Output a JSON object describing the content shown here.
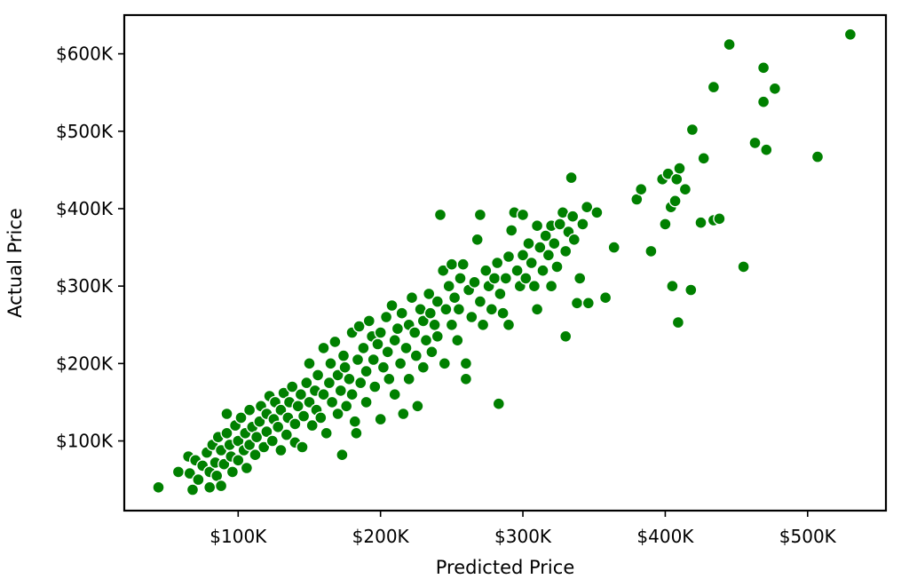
{
  "chart_data": {
    "type": "scatter",
    "title": "",
    "xlabel": "Predicted Price",
    "ylabel": "Actual Price",
    "xlim": [
      20000,
      555000
    ],
    "ylim": [
      10000,
      650000
    ],
    "x_ticks": [
      100000,
      200000,
      300000,
      400000,
      500000
    ],
    "x_tick_labels": [
      "$100K",
      "$200K",
      "$300K",
      "$400K",
      "$500K"
    ],
    "y_ticks": [
      100000,
      200000,
      300000,
      400000,
      500000,
      600000
    ],
    "y_tick_labels": [
      "$100K",
      "$200K",
      "$300K",
      "$400K",
      "$500K",
      "$600K"
    ],
    "grid": false,
    "legend": "none",
    "marker_color": "#008000",
    "marker_edge_color": "#ffffff",
    "series": [
      {
        "points": [
          [
            44000,
            40000
          ],
          [
            58000,
            60000
          ],
          [
            65000,
            80000
          ],
          [
            66000,
            58000
          ],
          [
            68000,
            37000
          ],
          [
            70000,
            75000
          ],
          [
            72000,
            50000
          ],
          [
            75000,
            68000
          ],
          [
            78000,
            85000
          ],
          [
            80000,
            40000
          ],
          [
            80000,
            60000
          ],
          [
            82000,
            95000
          ],
          [
            84000,
            72000
          ],
          [
            85000,
            55000
          ],
          [
            86000,
            105000
          ],
          [
            88000,
            88000
          ],
          [
            88000,
            42000
          ],
          [
            90000,
            70000
          ],
          [
            92000,
            110000
          ],
          [
            92000,
            135000
          ],
          [
            94000,
            95000
          ],
          [
            95000,
            80000
          ],
          [
            96000,
            60000
          ],
          [
            98000,
            120000
          ],
          [
            100000,
            100000
          ],
          [
            100000,
            75000
          ],
          [
            102000,
            130000
          ],
          [
            104000,
            88000
          ],
          [
            105000,
            110000
          ],
          [
            106000,
            65000
          ],
          [
            108000,
            140000
          ],
          [
            108000,
            95000
          ],
          [
            110000,
            118000
          ],
          [
            112000,
            82000
          ],
          [
            113000,
            105000
          ],
          [
            115000,
            125000
          ],
          [
            116000,
            145000
          ],
          [
            118000,
            92000
          ],
          [
            120000,
            112000
          ],
          [
            120000,
            135000
          ],
          [
            122000,
            158000
          ],
          [
            124000,
            100000
          ],
          [
            125000,
            128000
          ],
          [
            126000,
            150000
          ],
          [
            128000,
            118000
          ],
          [
            130000,
            88000
          ],
          [
            130000,
            140000
          ],
          [
            132000,
            162000
          ],
          [
            134000,
            108000
          ],
          [
            135000,
            130000
          ],
          [
            136000,
            150000
          ],
          [
            138000,
            170000
          ],
          [
            140000,
            122000
          ],
          [
            140000,
            98000
          ],
          [
            142000,
            145000
          ],
          [
            144000,
            160000
          ],
          [
            145000,
            92000
          ],
          [
            146000,
            132000
          ],
          [
            148000,
            175000
          ],
          [
            150000,
            150000
          ],
          [
            150000,
            200000
          ],
          [
            152000,
            120000
          ],
          [
            154000,
            165000
          ],
          [
            155000,
            140000
          ],
          [
            156000,
            185000
          ],
          [
            158000,
            130000
          ],
          [
            160000,
            160000
          ],
          [
            160000,
            220000
          ],
          [
            162000,
            110000
          ],
          [
            164000,
            175000
          ],
          [
            165000,
            200000
          ],
          [
            166000,
            150000
          ],
          [
            168000,
            228000
          ],
          [
            170000,
            185000
          ],
          [
            170000,
            135000
          ],
          [
            172000,
            165000
          ],
          [
            173000,
            82000
          ],
          [
            174000,
            210000
          ],
          [
            175000,
            195000
          ],
          [
            176000,
            145000
          ],
          [
            178000,
            180000
          ],
          [
            180000,
            240000
          ],
          [
            180000,
            160000
          ],
          [
            182000,
            125000
          ],
          [
            183000,
            110000
          ],
          [
            184000,
            205000
          ],
          [
            185000,
            248000
          ],
          [
            186000,
            175000
          ],
          [
            188000,
            220000
          ],
          [
            190000,
            190000
          ],
          [
            190000,
            150000
          ],
          [
            192000,
            255000
          ],
          [
            194000,
            235000
          ],
          [
            195000,
            205000
          ],
          [
            196000,
            170000
          ],
          [
            198000,
            225000
          ],
          [
            200000,
            240000
          ],
          [
            200000,
            128000
          ],
          [
            202000,
            195000
          ],
          [
            204000,
            260000
          ],
          [
            205000,
            215000
          ],
          [
            206000,
            180000
          ],
          [
            208000,
            275000
          ],
          [
            210000,
            230000
          ],
          [
            210000,
            160000
          ],
          [
            212000,
            245000
          ],
          [
            214000,
            200000
          ],
          [
            215000,
            265000
          ],
          [
            216000,
            135000
          ],
          [
            218000,
            220000
          ],
          [
            220000,
            250000
          ],
          [
            220000,
            180000
          ],
          [
            222000,
            285000
          ],
          [
            224000,
            240000
          ],
          [
            225000,
            210000
          ],
          [
            226000,
            145000
          ],
          [
            228000,
            270000
          ],
          [
            230000,
            255000
          ],
          [
            230000,
            195000
          ],
          [
            232000,
            230000
          ],
          [
            234000,
            290000
          ],
          [
            235000,
            265000
          ],
          [
            236000,
            215000
          ],
          [
            238000,
            250000
          ],
          [
            240000,
            280000
          ],
          [
            240000,
            235000
          ],
          [
            242000,
            392000
          ],
          [
            244000,
            320000
          ],
          [
            245000,
            200000
          ],
          [
            246000,
            270000
          ],
          [
            248000,
            300000
          ],
          [
            250000,
            250000
          ],
          [
            250000,
            328000
          ],
          [
            252000,
            285000
          ],
          [
            254000,
            230000
          ],
          [
            255000,
            270000
          ],
          [
            256000,
            310000
          ],
          [
            258000,
            328000
          ],
          [
            260000,
            200000
          ],
          [
            260000,
            180000
          ],
          [
            262000,
            295000
          ],
          [
            264000,
            260000
          ],
          [
            266000,
            305000
          ],
          [
            268000,
            360000
          ],
          [
            270000,
            392000
          ],
          [
            270000,
            280000
          ],
          [
            272000,
            250000
          ],
          [
            274000,
            320000
          ],
          [
            276000,
            300000
          ],
          [
            278000,
            270000
          ],
          [
            280000,
            310000
          ],
          [
            282000,
            330000
          ],
          [
            283000,
            148000
          ],
          [
            284000,
            290000
          ],
          [
            286000,
            265000
          ],
          [
            288000,
            310000
          ],
          [
            290000,
            338000
          ],
          [
            290000,
            250000
          ],
          [
            292000,
            372000
          ],
          [
            294000,
            395000
          ],
          [
            296000,
            320000
          ],
          [
            298000,
            300000
          ],
          [
            300000,
            392000
          ],
          [
            300000,
            340000
          ],
          [
            302000,
            310000
          ],
          [
            304000,
            355000
          ],
          [
            306000,
            330000
          ],
          [
            308000,
            300000
          ],
          [
            310000,
            270000
          ],
          [
            310000,
            378000
          ],
          [
            312000,
            350000
          ],
          [
            314000,
            320000
          ],
          [
            316000,
            365000
          ],
          [
            318000,
            340000
          ],
          [
            320000,
            378000
          ],
          [
            320000,
            300000
          ],
          [
            322000,
            355000
          ],
          [
            324000,
            325000
          ],
          [
            326000,
            380000
          ],
          [
            328000,
            395000
          ],
          [
            330000,
            235000
          ],
          [
            330000,
            345000
          ],
          [
            332000,
            370000
          ],
          [
            334000,
            440000
          ],
          [
            335000,
            390000
          ],
          [
            336000,
            360000
          ],
          [
            338000,
            278000
          ],
          [
            340000,
            310000
          ],
          [
            342000,
            380000
          ],
          [
            345000,
            402000
          ],
          [
            346000,
            278000
          ],
          [
            352000,
            395000
          ],
          [
            358000,
            285000
          ],
          [
            364000,
            350000
          ],
          [
            380000,
            412000
          ],
          [
            383000,
            425000
          ],
          [
            390000,
            345000
          ],
          [
            398000,
            438000
          ],
          [
            400000,
            380000
          ],
          [
            402000,
            445000
          ],
          [
            404000,
            402000
          ],
          [
            405000,
            300000
          ],
          [
            407000,
            410000
          ],
          [
            408000,
            438000
          ],
          [
            409000,
            253000
          ],
          [
            410000,
            452000
          ],
          [
            414000,
            425000
          ],
          [
            418000,
            295000
          ],
          [
            419000,
            502000
          ],
          [
            425000,
            382000
          ],
          [
            427000,
            465000
          ],
          [
            434000,
            385000
          ],
          [
            434000,
            557000
          ],
          [
            438000,
            387000
          ],
          [
            445000,
            612000
          ],
          [
            455000,
            325000
          ],
          [
            463000,
            485000
          ],
          [
            469000,
            582000
          ],
          [
            469000,
            538000
          ],
          [
            471000,
            476000
          ],
          [
            477000,
            555000
          ],
          [
            507000,
            467000
          ],
          [
            530000,
            625000
          ]
        ]
      }
    ]
  }
}
